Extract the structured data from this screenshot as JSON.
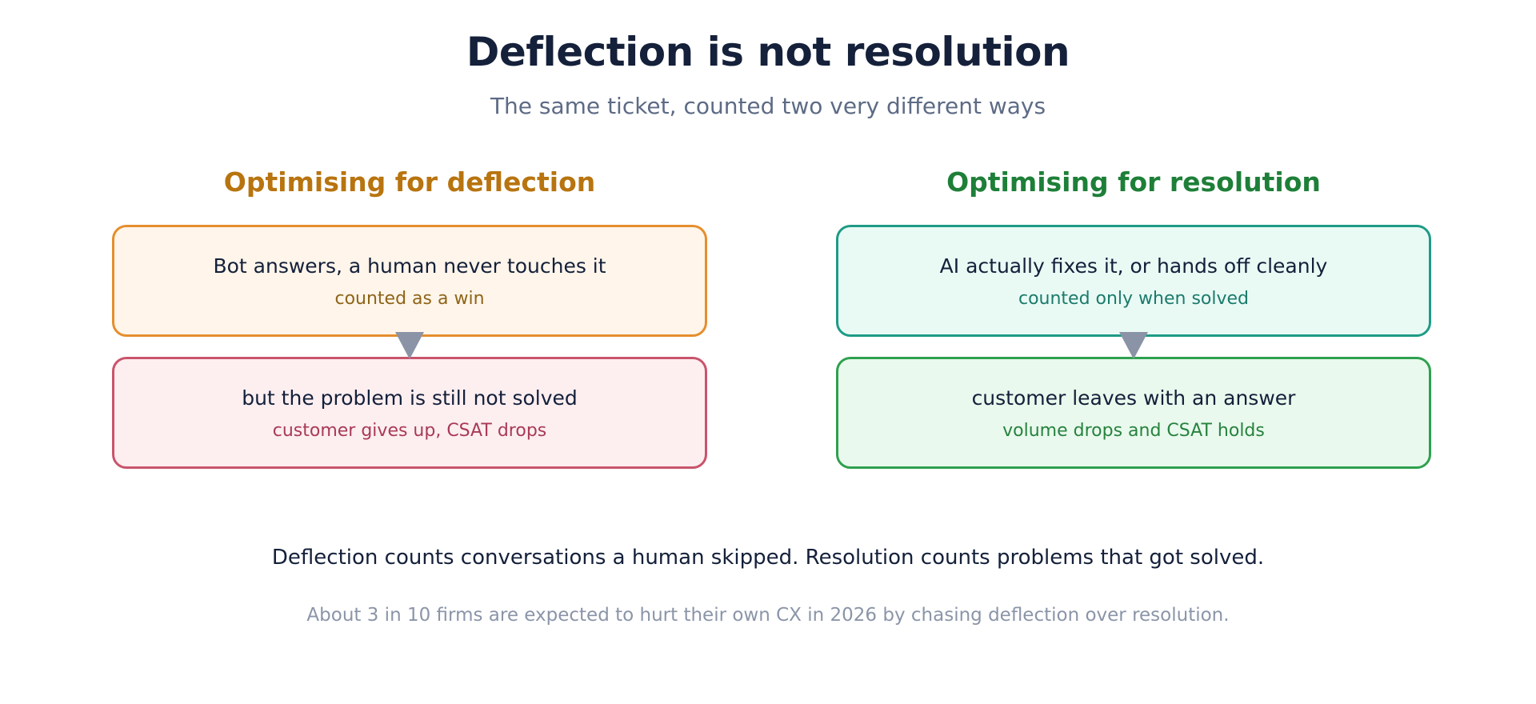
{
  "header": {
    "title": "Deflection is not resolution",
    "subtitle": "The same ticket, counted two very different ways"
  },
  "columns": {
    "deflection": {
      "heading": "Optimising for deflection",
      "top": {
        "main": "Bot answers, a human never touches it",
        "sub": "counted as a win"
      },
      "bottom": {
        "main": "but the problem is still not solved",
        "sub": "customer gives up, CSAT drops"
      }
    },
    "resolution": {
      "heading": "Optimising for resolution",
      "top": {
        "main": "AI actually fixes it, or hands off cleanly",
        "sub": "counted only when solved"
      },
      "bottom": {
        "main": "customer leaves with an answer",
        "sub": "volume drops and CSAT holds"
      }
    }
  },
  "footer": {
    "statement": "Deflection counts conversations a human skipped. Resolution counts problems that got solved.",
    "note": "About 3 in 10 firms are expected to hurt their own CX in 2026 by chasing deflection over resolution."
  },
  "colors": {
    "deflection_accent": "#b8740f",
    "deflection_border": "#e58e2e",
    "problem_border": "#c9546c",
    "resolution_accent": "#1e7f38",
    "resolution_top_border": "#1e9b86",
    "resolution_bottom_border": "#2fa04f",
    "arrow": "#8b94a6"
  }
}
